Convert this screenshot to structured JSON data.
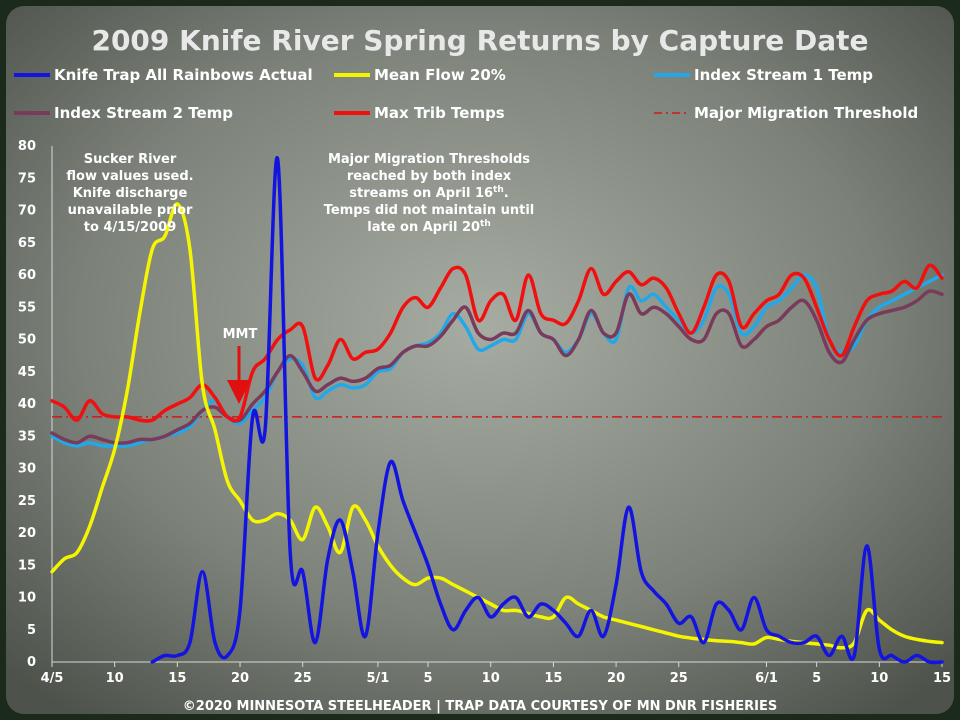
{
  "chart_data": {
    "type": "line",
    "title": "2009 Knife River Spring Returns by Capture Date",
    "ylim": [
      0,
      80
    ],
    "yticks": [
      0,
      5,
      10,
      15,
      20,
      25,
      30,
      35,
      40,
      45,
      50,
      55,
      60,
      65,
      70,
      75,
      80
    ],
    "x_start": "2009-04-05",
    "x_end": "2009-06-15",
    "xtick_labels": [
      {
        "date": "2009-04-05",
        "label": "4/5"
      },
      {
        "date": "2009-04-10",
        "label": "10"
      },
      {
        "date": "2009-04-15",
        "label": "15"
      },
      {
        "date": "2009-04-20",
        "label": "20"
      },
      {
        "date": "2009-04-25",
        "label": "25"
      },
      {
        "date": "2009-05-01",
        "label": "5/1"
      },
      {
        "date": "2009-05-05",
        "label": "5"
      },
      {
        "date": "2009-05-10",
        "label": "10"
      },
      {
        "date": "2009-05-15",
        "label": "15"
      },
      {
        "date": "2009-05-20",
        "label": "20"
      },
      {
        "date": "2009-05-25",
        "label": "25"
      },
      {
        "date": "2009-06-01",
        "label": "6/1"
      },
      {
        "date": "2009-06-05",
        "label": "5"
      },
      {
        "date": "2009-06-10",
        "label": "10"
      },
      {
        "date": "2009-06-15",
        "label": "15"
      }
    ],
    "legend_position": "top",
    "series": [
      {
        "name": "Knife Trap All Rainbows Actual",
        "color": "#1414e0",
        "x": [
          "2009-04-13",
          "2009-04-14",
          "2009-04-15",
          "2009-04-16",
          "2009-04-17",
          "2009-04-18",
          "2009-04-19",
          "2009-04-20",
          "2009-04-21",
          "2009-04-22",
          "2009-04-23",
          "2009-04-24",
          "2009-04-25",
          "2009-04-26",
          "2009-04-27",
          "2009-04-28",
          "2009-04-29",
          "2009-04-30",
          "2009-05-01",
          "2009-05-02",
          "2009-05-03",
          "2009-05-04",
          "2009-05-05",
          "2009-05-06",
          "2009-05-07",
          "2009-05-08",
          "2009-05-09",
          "2009-05-10",
          "2009-05-11",
          "2009-05-12",
          "2009-05-13",
          "2009-05-14",
          "2009-05-15",
          "2009-05-16",
          "2009-05-17",
          "2009-05-18",
          "2009-05-19",
          "2009-05-20",
          "2009-05-21",
          "2009-05-22",
          "2009-05-23",
          "2009-05-24",
          "2009-05-25",
          "2009-05-26",
          "2009-05-27",
          "2009-05-28",
          "2009-05-29",
          "2009-05-30",
          "2009-05-31",
          "2009-06-01",
          "2009-06-02",
          "2009-06-03",
          "2009-06-04",
          "2009-06-05",
          "2009-06-06",
          "2009-06-07",
          "2009-06-08",
          "2009-06-09",
          "2009-06-10",
          "2009-06-11",
          "2009-06-12",
          "2009-06-13",
          "2009-06-14",
          "2009-06-15"
        ],
        "values": [
          0,
          1,
          1,
          3,
          14,
          3,
          1,
          8,
          38,
          36,
          78,
          17,
          14,
          3,
          16,
          22,
          14,
          4,
          20,
          31,
          25,
          20,
          15,
          9,
          5,
          8,
          10,
          7,
          9,
          10,
          7,
          9,
          8,
          6,
          4,
          8,
          4,
          12,
          24,
          14,
          11,
          9,
          6,
          7,
          3,
          9,
          8,
          5,
          10,
          5,
          4,
          3,
          3,
          4,
          1,
          4,
          1,
          18,
          2,
          1,
          0,
          1,
          0,
          0
        ]
      },
      {
        "name": "Mean Flow 20%",
        "color": "#f5f500",
        "x": [
          "2009-04-05",
          "2009-04-06",
          "2009-04-07",
          "2009-04-08",
          "2009-04-09",
          "2009-04-10",
          "2009-04-11",
          "2009-04-12",
          "2009-04-13",
          "2009-04-14",
          "2009-04-15",
          "2009-04-16",
          "2009-04-17",
          "2009-04-18",
          "2009-04-19",
          "2009-04-20",
          "2009-04-21",
          "2009-04-22",
          "2009-04-23",
          "2009-04-24",
          "2009-04-25",
          "2009-04-26",
          "2009-04-27",
          "2009-04-28",
          "2009-04-29",
          "2009-04-30",
          "2009-05-01",
          "2009-05-02",
          "2009-05-03",
          "2009-05-04",
          "2009-05-05",
          "2009-05-06",
          "2009-05-07",
          "2009-05-08",
          "2009-05-09",
          "2009-05-10",
          "2009-05-11",
          "2009-05-12",
          "2009-05-13",
          "2009-05-14",
          "2009-05-15",
          "2009-05-16",
          "2009-05-17",
          "2009-05-18",
          "2009-05-19",
          "2009-05-20",
          "2009-05-21",
          "2009-05-22",
          "2009-05-23",
          "2009-05-24",
          "2009-05-25",
          "2009-05-26",
          "2009-05-27",
          "2009-05-28",
          "2009-05-29",
          "2009-05-30",
          "2009-05-31",
          "2009-06-01",
          "2009-06-02",
          "2009-06-03",
          "2009-06-04",
          "2009-06-05",
          "2009-06-06",
          "2009-06-07",
          "2009-06-08",
          "2009-06-09",
          "2009-06-10",
          "2009-06-11",
          "2009-06-12",
          "2009-06-13",
          "2009-06-14",
          "2009-06-15"
        ],
        "values": [
          14,
          16,
          17,
          21,
          27,
          33,
          42,
          54,
          64,
          66,
          71,
          64,
          43,
          36,
          28,
          25,
          22,
          22,
          23,
          22,
          19,
          24,
          21,
          17,
          24,
          22,
          18,
          15,
          13,
          12,
          13,
          13,
          12,
          11,
          10,
          9,
          8,
          8,
          7.5,
          7,
          7,
          10,
          9,
          8,
          7,
          6.5,
          6,
          5.5,
          5,
          4.5,
          4,
          3.7,
          3.5,
          3.3,
          3.2,
          3,
          2.8,
          3.8,
          3.5,
          3.2,
          3,
          2.8,
          2.6,
          2.2,
          3,
          8,
          6.5,
          5,
          4,
          3.5,
          3.2,
          3
        ]
      },
      {
        "name": "Index Stream 1 Temp",
        "color": "#22a8e8",
        "x": [
          "2009-04-05",
          "2009-04-06",
          "2009-04-07",
          "2009-04-08",
          "2009-04-09",
          "2009-04-10",
          "2009-04-11",
          "2009-04-12",
          "2009-04-13",
          "2009-04-14",
          "2009-04-15",
          "2009-04-16",
          "2009-04-17",
          "2009-04-18",
          "2009-04-19",
          "2009-04-20",
          "2009-04-21",
          "2009-04-22",
          "2009-04-23",
          "2009-04-24",
          "2009-04-25",
          "2009-04-26",
          "2009-04-27",
          "2009-04-28",
          "2009-04-29",
          "2009-04-30",
          "2009-05-01",
          "2009-05-02",
          "2009-05-03",
          "2009-05-04",
          "2009-05-05",
          "2009-05-06",
          "2009-05-07",
          "2009-05-08",
          "2009-05-09",
          "2009-05-10",
          "2009-05-11",
          "2009-05-12",
          "2009-05-13",
          "2009-05-14",
          "2009-05-15",
          "2009-05-16",
          "2009-05-17",
          "2009-05-18",
          "2009-05-19",
          "2009-05-20",
          "2009-05-21",
          "2009-05-22",
          "2009-05-23",
          "2009-05-24",
          "2009-05-25",
          "2009-05-26",
          "2009-05-27",
          "2009-05-28",
          "2009-05-29",
          "2009-05-30",
          "2009-05-31",
          "2009-06-01",
          "2009-06-02",
          "2009-06-03",
          "2009-06-04",
          "2009-06-05",
          "2009-06-06",
          "2009-06-07",
          "2009-06-08",
          "2009-06-09",
          "2009-06-10",
          "2009-06-11",
          "2009-06-12",
          "2009-06-13",
          "2009-06-14",
          "2009-06-15"
        ],
        "values": [
          35,
          34,
          33.5,
          34,
          33.5,
          33.5,
          33.5,
          34,
          34.5,
          35,
          35.5,
          36.5,
          39,
          40.5,
          38,
          37,
          39,
          41,
          45,
          47,
          46,
          41,
          42,
          43,
          42.5,
          43,
          45,
          45.5,
          48,
          49,
          49.5,
          51,
          54,
          52,
          48.5,
          49,
          50,
          50,
          54,
          51,
          50,
          48,
          50,
          54,
          51,
          50,
          58,
          56,
          57,
          55,
          53,
          51,
          53,
          58,
          57,
          51,
          52,
          55,
          56,
          58,
          60,
          58,
          50,
          48,
          49,
          53,
          55,
          56,
          57,
          58,
          59,
          60
        ]
      },
      {
        "name": "Index Stream 2 Temp",
        "color": "#7a3a5a",
        "x": [
          "2009-04-05",
          "2009-04-06",
          "2009-04-07",
          "2009-04-08",
          "2009-04-09",
          "2009-04-10",
          "2009-04-11",
          "2009-04-12",
          "2009-04-13",
          "2009-04-14",
          "2009-04-15",
          "2009-04-16",
          "2009-04-17",
          "2009-04-18",
          "2009-04-19",
          "2009-04-20",
          "2009-04-21",
          "2009-04-22",
          "2009-04-23",
          "2009-04-24",
          "2009-04-25",
          "2009-04-26",
          "2009-04-27",
          "2009-04-28",
          "2009-04-29",
          "2009-04-30",
          "2009-05-01",
          "2009-05-02",
          "2009-05-03",
          "2009-05-04",
          "2009-05-05",
          "2009-05-06",
          "2009-05-07",
          "2009-05-08",
          "2009-05-09",
          "2009-05-10",
          "2009-05-11",
          "2009-05-12",
          "2009-05-13",
          "2009-05-14",
          "2009-05-15",
          "2009-05-16",
          "2009-05-17",
          "2009-05-18",
          "2009-05-19",
          "2009-05-20",
          "2009-05-21",
          "2009-05-22",
          "2009-05-23",
          "2009-05-24",
          "2009-05-25",
          "2009-05-26",
          "2009-05-27",
          "2009-05-28",
          "2009-05-29",
          "2009-05-30",
          "2009-05-31",
          "2009-06-01",
          "2009-06-02",
          "2009-06-03",
          "2009-06-04",
          "2009-06-05",
          "2009-06-06",
          "2009-06-07",
          "2009-06-08",
          "2009-06-09",
          "2009-06-10",
          "2009-06-11",
          "2009-06-12",
          "2009-06-13",
          "2009-06-14",
          "2009-06-15"
        ],
        "values": [
          35.5,
          34.5,
          34,
          35,
          34.5,
          34,
          34,
          34.5,
          34.5,
          35,
          36,
          37,
          39,
          39.5,
          38,
          37.5,
          40,
          42,
          45,
          47.5,
          45,
          42,
          43,
          44,
          43.5,
          44,
          45.5,
          46,
          48,
          49,
          49,
          50.5,
          53,
          55,
          51,
          50,
          51,
          51,
          54.5,
          51,
          50,
          47.5,
          50,
          54.5,
          51,
          51,
          57,
          54,
          55,
          54,
          52,
          50,
          50,
          54,
          54,
          49,
          50,
          52,
          53,
          55,
          56,
          53,
          48,
          46.5,
          50,
          53,
          54,
          54.5,
          55,
          56,
          57.5,
          57
        ]
      },
      {
        "name": "Max Trib Temps",
        "color": "#f01010",
        "x": [
          "2009-04-05",
          "2009-04-06",
          "2009-04-07",
          "2009-04-08",
          "2009-04-09",
          "2009-04-10",
          "2009-04-11",
          "2009-04-12",
          "2009-04-13",
          "2009-04-14",
          "2009-04-15",
          "2009-04-16",
          "2009-04-17",
          "2009-04-18",
          "2009-04-19",
          "2009-04-20",
          "2009-04-21",
          "2009-04-22",
          "2009-04-23",
          "2009-04-24",
          "2009-04-25",
          "2009-04-26",
          "2009-04-27",
          "2009-04-28",
          "2009-04-29",
          "2009-04-30",
          "2009-05-01",
          "2009-05-02",
          "2009-05-03",
          "2009-05-04",
          "2009-05-05",
          "2009-05-06",
          "2009-05-07",
          "2009-05-08",
          "2009-05-09",
          "2009-05-10",
          "2009-05-11",
          "2009-05-12",
          "2009-05-13",
          "2009-05-14",
          "2009-05-15",
          "2009-05-16",
          "2009-05-17",
          "2009-05-18",
          "2009-05-19",
          "2009-05-20",
          "2009-05-21",
          "2009-05-22",
          "2009-05-23",
          "2009-05-24",
          "2009-05-25",
          "2009-05-26",
          "2009-05-27",
          "2009-05-28",
          "2009-05-29",
          "2009-05-30",
          "2009-05-31",
          "2009-06-01",
          "2009-06-02",
          "2009-06-03",
          "2009-06-04",
          "2009-06-05",
          "2009-06-06",
          "2009-06-07",
          "2009-06-08",
          "2009-06-09",
          "2009-06-10",
          "2009-06-11",
          "2009-06-12",
          "2009-06-13",
          "2009-06-14",
          "2009-06-15"
        ],
        "values": [
          40.5,
          39.5,
          37.5,
          40.5,
          38.5,
          38,
          38,
          37.5,
          37.5,
          39,
          40,
          41,
          43,
          41,
          38,
          38,
          45,
          47,
          50,
          51.5,
          52,
          44,
          46,
          50,
          47,
          48,
          48.5,
          51,
          55,
          56.5,
          55,
          58,
          61,
          60,
          53,
          56,
          57,
          53,
          60,
          54,
          53,
          52.5,
          56,
          61,
          57,
          59,
          60.5,
          58.5,
          59.5,
          58,
          54,
          51,
          55,
          60,
          59,
          52,
          54,
          56,
          57,
          60,
          59.5,
          55,
          50,
          47.5,
          52,
          56,
          57,
          57.5,
          59,
          58,
          61.5,
          59.5
        ]
      }
    ],
    "threshold": {
      "name": "Major Migration Threshold",
      "value": 38,
      "color": "#cc1a1a",
      "style": "dash-dot"
    }
  },
  "labels": {
    "title": "2009 Knife River Spring Returns by Capture Date",
    "legend": [
      {
        "name": "Knife Trap All Rainbows Actual",
        "color": "#1414e0"
      },
      {
        "name": "Mean Flow 20%",
        "color": "#f5f500"
      },
      {
        "name": "Index Stream 1 Temp",
        "color": "#22a8e8"
      },
      {
        "name": "Index Stream 2 Temp",
        "color": "#7a3a5a"
      },
      {
        "name": "Max Trib Temps",
        "color": "#f01010"
      },
      {
        "name": "Major Migration Threshold",
        "color": "#cc1a1a"
      }
    ],
    "annotation_left": [
      "Sucker River",
      "flow values used.",
      "Knife discharge",
      "unavailable prior",
      "to 4/15/2009"
    ],
    "annotation_mid": {
      "line1": "Major Migration Thresholds",
      "line2": "reached by both index",
      "line3_main": "streams on April 16",
      "line3_sup": "th",
      "line3_end": ".",
      "line4": "Temps did not maintain until",
      "line5_main": "late on April 20",
      "line5_sup": "th"
    },
    "mmt_label": "MMT",
    "footer": "©2020 MINNESOTA STEELHEADER | TRAP DATA COURTESY OF MN DNR FISHERIES"
  }
}
